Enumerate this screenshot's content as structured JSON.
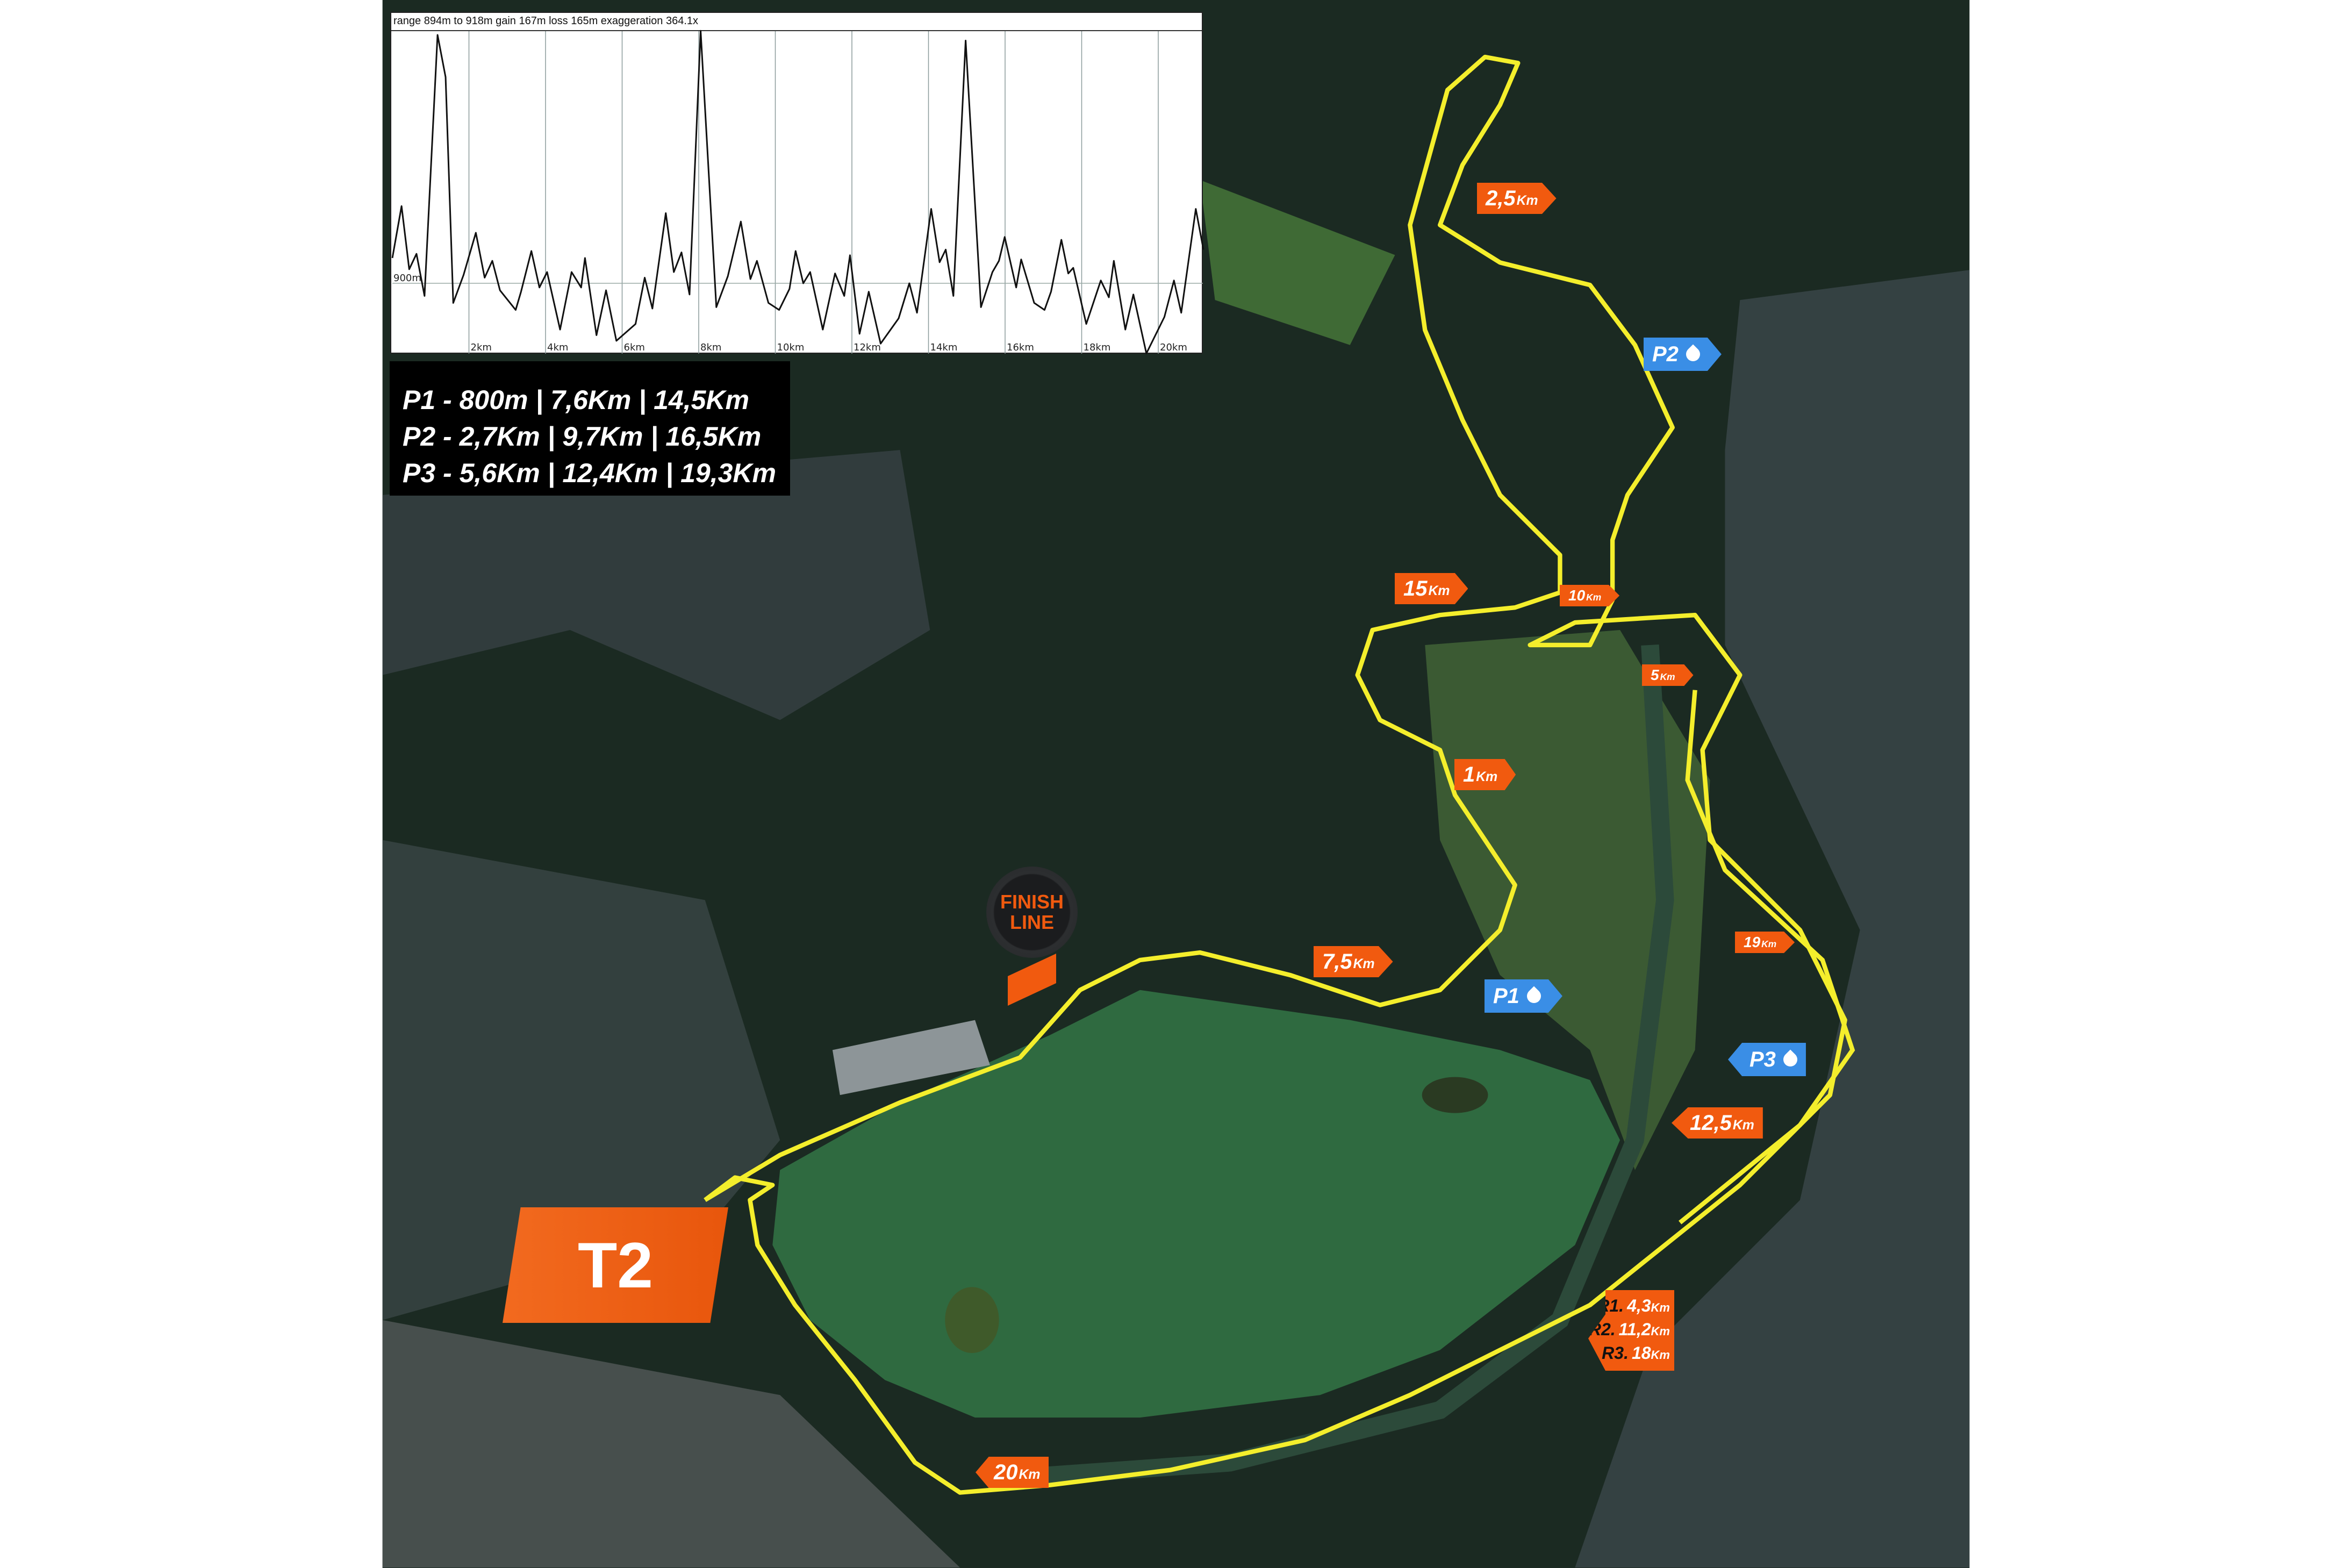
{
  "colors": {
    "route": "#f4ee2c",
    "km_marker": "#f15a0f",
    "aid_station": "#3a8ee6",
    "forest": "#1d2e22",
    "lake": "#2f6a40"
  },
  "elevation": {
    "header": "range 894m to 918m  gain 167m  loss 165m  exaggeration 364.1x",
    "ref_label": "900m",
    "x_ticks": [
      "2km",
      "4km",
      "6km",
      "8km",
      "10km",
      "12km",
      "14km",
      "16km",
      "18km",
      "20km"
    ]
  },
  "chart_data": {
    "type": "line",
    "title": "range 894m to 918m  gain 167m  loss 165m  exaggeration 364.1x",
    "xlabel": "",
    "ylabel": "",
    "x_unit": "km",
    "y_unit": "m",
    "xlim": [
      0,
      21.2
    ],
    "ylim": [
      894,
      918
    ],
    "grid": "vertical every 2km, horizontal at 900m",
    "x_tick_labels": [
      "2km",
      "4km",
      "6km",
      "8km",
      "10km",
      "12km",
      "14km",
      "16km",
      "18km",
      "20km"
    ],
    "y_tick_labels": [
      "900m"
    ],
    "x": [
      0,
      0.24,
      0.44,
      0.63,
      0.84,
      1.18,
      1.39,
      1.59,
      1.86,
      2.18,
      2.41,
      2.61,
      2.81,
      3.22,
      3.36,
      3.63,
      3.84,
      4.04,
      4.38,
      4.68,
      4.93,
      5.03,
      5.33,
      5.58,
      5.85,
      6.35,
      6.59,
      6.79,
      7.14,
      7.35,
      7.55,
      7.76,
      8.05,
      8.46,
      8.76,
      9.1,
      9.35,
      9.52,
      9.82,
      10.1,
      10.37,
      10.53,
      10.73,
      10.91,
      11.24,
      11.56,
      11.8,
      11.95,
      12.2,
      12.44,
      12.75,
      13.22,
      13.5,
      13.7,
      14.07,
      14.29,
      14.45,
      14.65,
      14.97,
      15.37,
      15.67,
      15.84,
      15.99,
      16.29,
      16.42,
      16.76,
      17.03,
      17.2,
      17.47,
      17.65,
      17.78,
      18.12,
      18.5,
      18.71,
      18.84,
      19.14,
      19.35,
      19.69,
      20.16,
      20.41,
      20.6,
      20.98,
      21.18
    ],
    "y": [
      901.8,
      905.5,
      901.0,
      902.1,
      899.1,
      917.7,
      914.7,
      898.6,
      900.6,
      903.6,
      900.4,
      901.6,
      899.5,
      898.1,
      899.4,
      902.3,
      899.7,
      900.8,
      896.7,
      900.8,
      899.7,
      901.8,
      896.3,
      899.5,
      895.9,
      897.1,
      900.4,
      898.2,
      905.0,
      900.8,
      902.2,
      899.2,
      918.0,
      898.3,
      900.5,
      904.4,
      900.3,
      901.6,
      898.6,
      898.1,
      899.6,
      902.3,
      900.0,
      900.8,
      896.7,
      900.7,
      899.1,
      902.0,
      896.4,
      899.4,
      895.7,
      897.5,
      900.0,
      897.9,
      905.3,
      901.5,
      902.4,
      899.1,
      917.3,
      898.3,
      900.8,
      901.6,
      903.3,
      899.7,
      901.7,
      898.6,
      898.1,
      899.4,
      903.1,
      900.7,
      901.1,
      897.1,
      900.2,
      899.0,
      901.6,
      896.7,
      899.2,
      895.0,
      897.6,
      900.2,
      897.9,
      905.3,
      902.4
    ]
  },
  "legend": {
    "lines": [
      "P1 - 800m | 7,6Km  | 14,5Km",
      "P2 - 2,7Km | 9,7Km  | 16,5Km",
      "P3 - 5,6Km | 12,4Km  | 19,3Km"
    ]
  },
  "markers": {
    "km2_5": {
      "value": "2,5",
      "unit": "Km"
    },
    "km15": {
      "value": "15",
      "unit": "Km"
    },
    "km10": {
      "value": "10",
      "unit": "Km"
    },
    "km5": {
      "value": "5",
      "unit": "Km"
    },
    "km1": {
      "value": "1",
      "unit": "Km"
    },
    "km7_5": {
      "value": "7,5",
      "unit": "Km"
    },
    "km19": {
      "value": "19",
      "unit": "Km"
    },
    "km12_5": {
      "value": "12,5",
      "unit": "Km"
    },
    "km20": {
      "value": "20",
      "unit": "Km"
    }
  },
  "aid_stations": {
    "p1": "P1",
    "p2": "P2",
    "p3": "P3"
  },
  "returns": [
    {
      "label": "R1.",
      "value": "4,3",
      "unit": "Km"
    },
    {
      "label": "R2.",
      "value": "11,2",
      "unit": "Km"
    },
    {
      "label": "R3.",
      "value": "18",
      "unit": "Km"
    }
  ],
  "finish": {
    "line1": "FINISH",
    "line2": "LINE"
  },
  "transition": "T2"
}
